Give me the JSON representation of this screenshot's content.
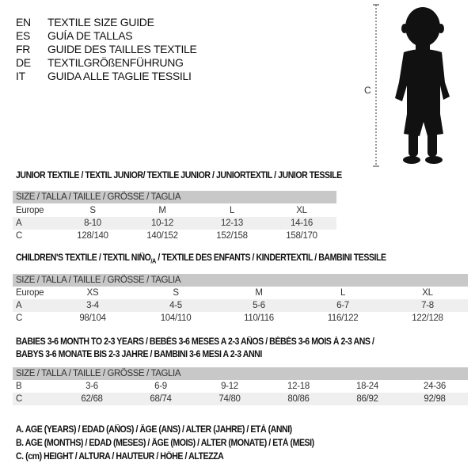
{
  "languages": [
    {
      "code": "EN",
      "text": "TEXTILE SIZE GUIDE"
    },
    {
      "code": "ES",
      "text": "GUÍA DE TALLAS"
    },
    {
      "code": "FR",
      "text": "GUIDE DES TAILLES TEXTILE"
    },
    {
      "code": "DE",
      "text": "TEXTILGRÖßENFÜHRUNG"
    },
    {
      "code": "IT",
      "text": "GUIDA ALLE TAGLIE TESSILI"
    }
  ],
  "figure": {
    "label": "C",
    "icon": "child-silhouette"
  },
  "header_label": "SIZE / TALLA / TAILLE / GRÖSSE / TAGLIA",
  "junior": {
    "title": "JUNIOR TEXTILE / TEXTIL JUNIOR/ TEXTILE JUNIOR / JUNIORTEXTIL / JUNIOR TESSILE",
    "rows": [
      {
        "label": "Europe",
        "cells": [
          "S",
          "M",
          "L",
          "XL"
        ]
      },
      {
        "label": "A",
        "cells": [
          "8-10",
          "10-12",
          "12-13",
          "14-16"
        ]
      },
      {
        "label": "C",
        "cells": [
          "128/140",
          "140/152",
          "152/158",
          "158/170"
        ]
      }
    ]
  },
  "children": {
    "title": "CHILDREN'S TEXTILE / TEXTIL NIÑO",
    "title_sub": "/A",
    "title_rest": " / TEXTILE DES ENFANTS / KINDERTEXTIL / BAMBINI TESSILE",
    "rows": [
      {
        "label": "Europe",
        "cells": [
          "XS",
          "S",
          "M",
          "L",
          "XL"
        ]
      },
      {
        "label": "A",
        "cells": [
          "3-4",
          "4-5",
          "5-6",
          "6-7",
          "7-8"
        ]
      },
      {
        "label": "C",
        "cells": [
          "98/104",
          "104/110",
          "110/116",
          "116/122",
          "122/128"
        ]
      }
    ]
  },
  "babies": {
    "title_line1": "BABIES 3-6 MONTH TO 2-3 YEARS / BEBÉS 3-6 MESES A 2-3 AÑOS / BÉBÉS 3-6 MOIS À 2-3 ANS /",
    "title_line2": "BABYS 3-6 MONATE BIS 2-3 JAHRE / BAMBINI 3-6 MESI A 2-3 ANNI",
    "rows": [
      {
        "label": "B",
        "cells": [
          "3-6",
          "6-9",
          "9-12",
          "12-18",
          "18-24",
          "24-36"
        ]
      },
      {
        "label": "C",
        "cells": [
          "62/68",
          "68/74",
          "74/80",
          "80/86",
          "86/92",
          "92/98"
        ]
      }
    ]
  },
  "legend": [
    "A. AGE (YEARS) / EDAD (AÑOS) / ÂGE (ANS) / ALTER (JAHRE) / ETÀ (ANNI)",
    "B. AGE (MONTHS) / EDAD (MESES) / ÂGE (MOIS) / ALTER (MONATE) / ETÀ (MESI)",
    "C. (cm) HEIGHT / ALTURA / HAUTEUR / HÖHE / ALTEZZA"
  ]
}
